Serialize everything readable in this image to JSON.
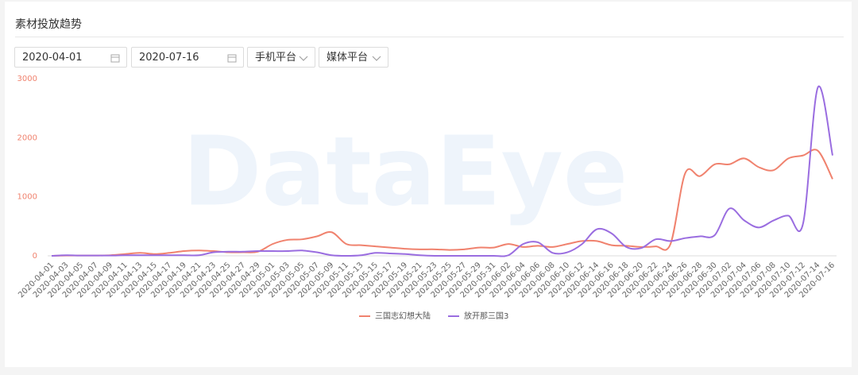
{
  "header": {
    "title": "素材投放趋势"
  },
  "filters": {
    "start_date": "2020-04-01",
    "end_date": "2020-07-16",
    "platform": "手机平台",
    "media": "媒体平台"
  },
  "chart_data": {
    "type": "line",
    "watermark": "DataEye",
    "categories": [
      "2020-04-01",
      "2020-04-03",
      "2020-04-05",
      "2020-04-07",
      "2020-04-09",
      "2020-04-11",
      "2020-04-13",
      "2020-04-15",
      "2020-04-17",
      "2020-04-19",
      "2020-04-21",
      "2020-04-23",
      "2020-04-25",
      "2020-04-27",
      "2020-04-29",
      "2020-05-01",
      "2020-05-03",
      "2020-05-05",
      "2020-05-07",
      "2020-05-09",
      "2020-05-11",
      "2020-05-13",
      "2020-05-15",
      "2020-05-17",
      "2020-05-19",
      "2020-05-21",
      "2020-05-23",
      "2020-05-25",
      "2020-05-27",
      "2020-05-29",
      "2020-05-31",
      "2020-06-02",
      "2020-06-04",
      "2020-06-06",
      "2020-06-08",
      "2020-06-10",
      "2020-06-12",
      "2020-06-14",
      "2020-06-16",
      "2020-06-18",
      "2020-06-20",
      "2020-06-22",
      "2020-06-24",
      "2020-06-26",
      "2020-06-28",
      "2020-06-30",
      "2020-07-02",
      "2020-07-04",
      "2020-07-06",
      "2020-07-08",
      "2020-07-10",
      "2020-07-12",
      "2020-07-14",
      "2020-07-16"
    ],
    "series": [
      {
        "name": "三国志幻想大陆",
        "color": "#f0826e",
        "values": [
          0,
          5,
          5,
          5,
          10,
          30,
          50,
          30,
          50,
          80,
          90,
          80,
          60,
          60,
          70,
          200,
          270,
          280,
          330,
          400,
          200,
          180,
          160,
          140,
          120,
          110,
          110,
          100,
          110,
          140,
          140,
          200,
          150,
          170,
          150,
          200,
          250,
          250,
          180,
          170,
          150,
          160,
          200,
          1400,
          1350,
          1550,
          1550,
          1650,
          1500,
          1450,
          1650,
          1700,
          1780,
          1300
        ]
      },
      {
        "name": "放开那三国3",
        "color": "#9a6de0",
        "values": [
          0,
          10,
          5,
          5,
          5,
          10,
          10,
          10,
          10,
          10,
          10,
          60,
          70,
          70,
          80,
          80,
          80,
          90,
          60,
          10,
          0,
          10,
          50,
          40,
          30,
          10,
          0,
          0,
          0,
          0,
          0,
          10,
          200,
          230,
          50,
          60,
          200,
          450,
          380,
          150,
          130,
          280,
          250,
          300,
          330,
          350,
          800,
          600,
          480,
          600,
          680,
          550,
          2850,
          1700
        ]
      }
    ],
    "ylim": [
      0,
      3000
    ],
    "yticks": [
      0,
      1000,
      2000,
      3000
    ],
    "grid": true,
    "legend": "bottom"
  }
}
